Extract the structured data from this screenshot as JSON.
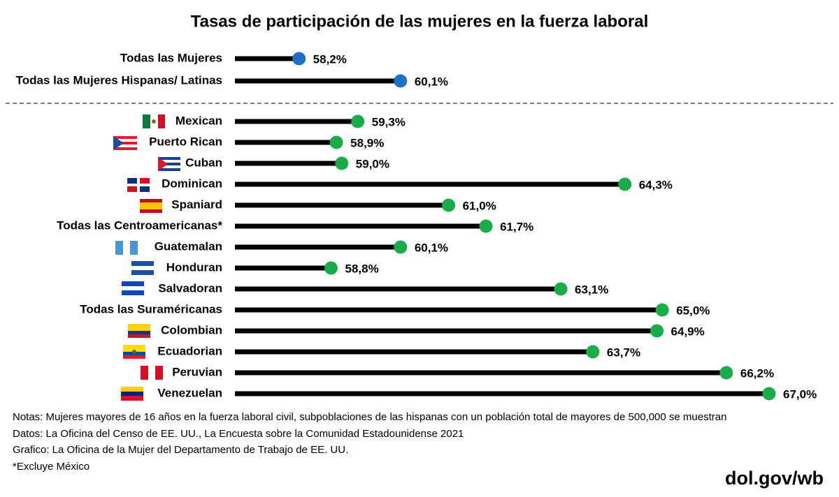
{
  "chart_data": [
    {
      "type": "lollipop",
      "title": "Tasas de participación de las mujeres en la fuerza laboral",
      "categories": [
        "Todas las Mujeres",
        "Todas las Mujeres Hispanas/ Latinas"
      ],
      "values": [
        58.2,
        60.1
      ],
      "value_labels": [
        "58,2%",
        "60,1%"
      ],
      "color": "#1f6fc5",
      "xlim": [
        57,
        67
      ]
    },
    {
      "type": "lollipop",
      "categories": [
        "Mexican",
        "Puerto Rican",
        "Cuban",
        "Dominican",
        "Spaniard",
        "Todas las Centroamericanas*",
        "Guatemalan",
        "Honduran",
        "Salvadoran",
        "Todas las Suraméricanas",
        "Colombian",
        "Ecuadorian",
        "Peruvian",
        "Venezuelan"
      ],
      "values": [
        59.3,
        58.9,
        59.0,
        64.3,
        61.0,
        61.7,
        60.1,
        58.8,
        63.1,
        65.0,
        64.9,
        63.7,
        66.2,
        67.0
      ],
      "value_labels": [
        "59,3%",
        "58,9%",
        "59,0%",
        "64,3%",
        "61,0%",
        "61,7%",
        "60,1%",
        "58,8%",
        "63,1%",
        "65,0%",
        "64,9%",
        "63,7%",
        "66,2%",
        "67,0%"
      ],
      "color": "#1aab4b",
      "xlim": [
        57,
        67
      ]
    }
  ],
  "notes": [
    "Notas: Mujeres mayores de 16 años en la fuerza laboral civil, subpoblaciones de las hispanas con un población total de mayores de 500,000 se muestran",
    "Datos: La Oficina del Censo de EE. UU., La Encuesta sobre la Comunidad Estadounidense 2021",
    "Grafico: La Oficina de la Mujer del Departamento de Trabajo de EE. UU.",
    "*Excluye México"
  ],
  "source": "dol.gov/wb"
}
